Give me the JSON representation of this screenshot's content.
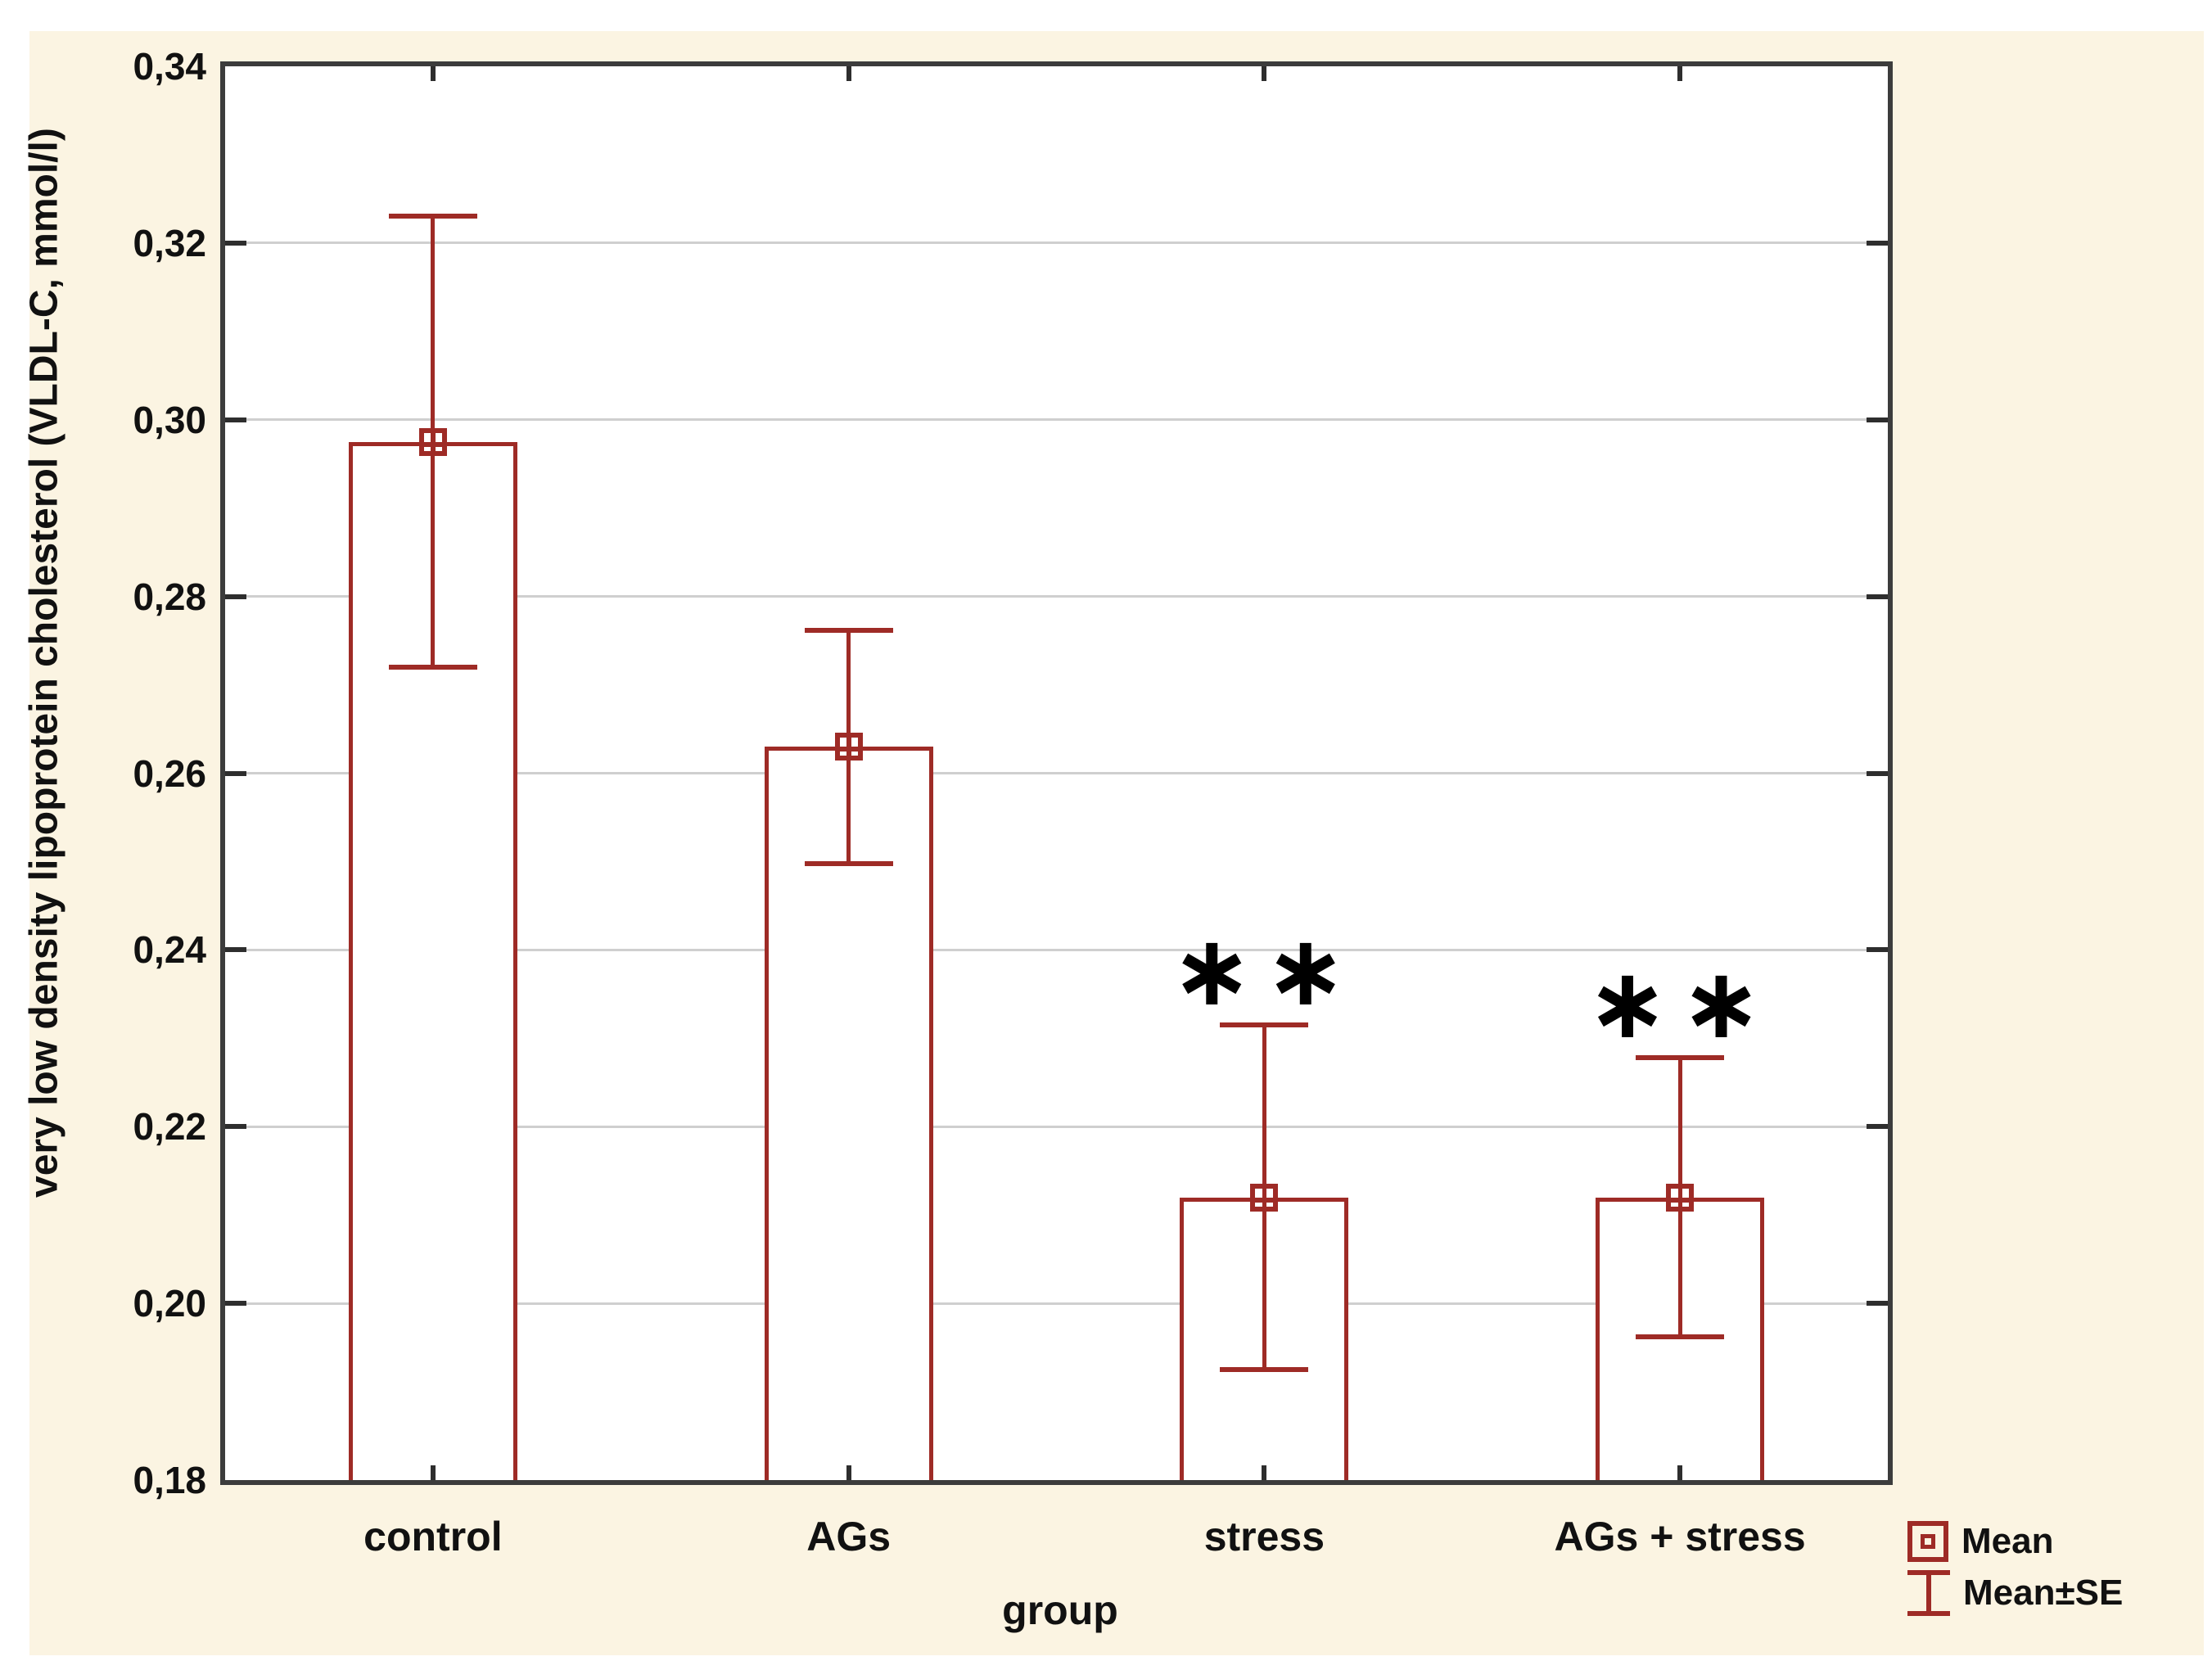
{
  "figure": {
    "bg_color": "#FBF4E2",
    "plot_bg_color": "#FFFFFF",
    "frame_color": "#3C3C3C",
    "grid_color": "#CFCFCF",
    "accent_red": "#9E2B26",
    "text_color": "#111111"
  },
  "chart_data": {
    "type": "bar",
    "title": "",
    "xlabel": "group",
    "ylabel": "very low density lipoprotein cholesterol (VLDL-C, mmol/l)",
    "categories": [
      "control",
      "AGs",
      "stress",
      "AGs + stress"
    ],
    "series": [
      {
        "name": "Mean",
        "values": [
          0.2975,
          0.263,
          0.212,
          0.212
        ]
      },
      {
        "name": "SE",
        "values": [
          0.0255,
          0.0132,
          0.0195,
          0.0158
        ]
      }
    ],
    "annotations": [
      "",
      "",
      "∗∗",
      "∗∗"
    ],
    "ylim": [
      0.18,
      0.34
    ],
    "y_tick_step": 0.02,
    "decimal_separator": ",",
    "y_ticks": [
      {
        "label": "0,34",
        "value": 0.34
      },
      {
        "label": "0,32",
        "value": 0.32
      },
      {
        "label": "0,30",
        "value": 0.3
      },
      {
        "label": "0,28",
        "value": 0.28
      },
      {
        "label": "0,26",
        "value": 0.26
      },
      {
        "label": "0,24",
        "value": 0.24
      },
      {
        "label": "0,22",
        "value": 0.22
      },
      {
        "label": "0,20",
        "value": 0.2
      },
      {
        "label": "0,18",
        "value": 0.18
      }
    ],
    "grid": "horizontal",
    "legend_position": "bottom-right",
    "legend": [
      {
        "icon": "mean-square-icon",
        "label": "Mean"
      },
      {
        "icon": "errorbar-icon",
        "label": "Mean±SE"
      }
    ]
  }
}
